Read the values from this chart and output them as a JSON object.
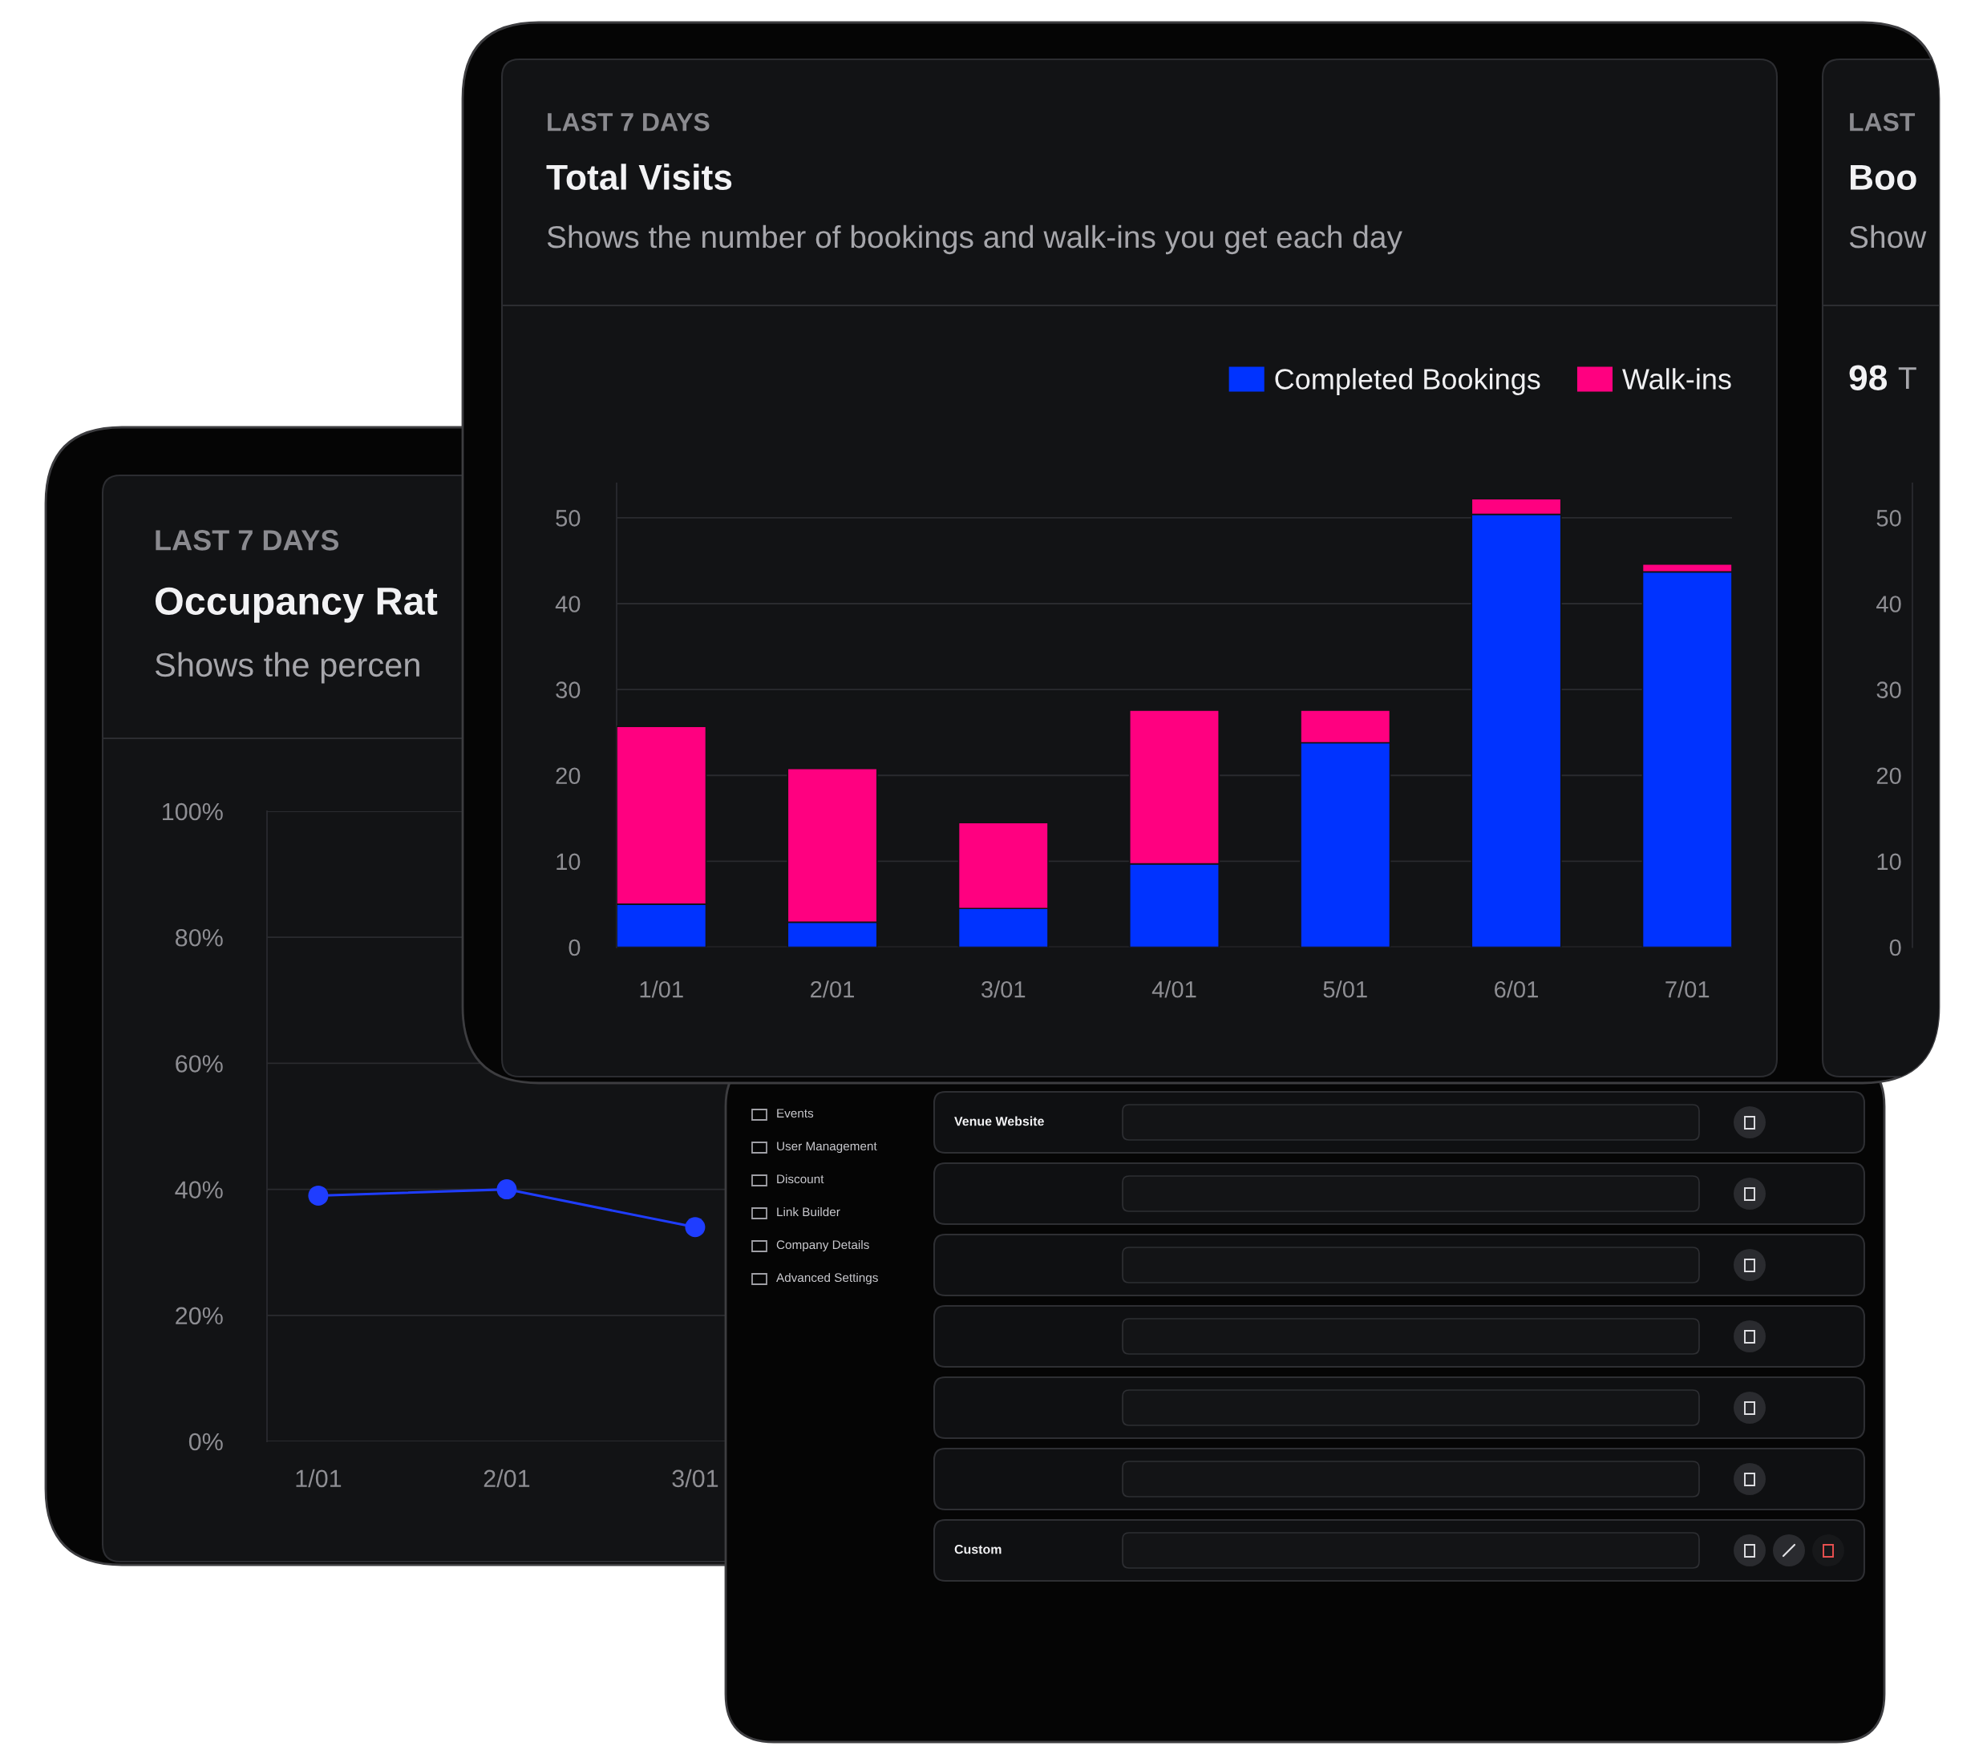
{
  "chart_data": [
    {
      "type": "bar",
      "stacked": true,
      "annotations": [
        "LAST 7 DAYS"
      ],
      "title": "Total Visits",
      "subtitle": "Shows the number of bookings and walk-ins you get each day",
      "categories": [
        "1/01",
        "2/01",
        "3/01",
        "4/01",
        "5/01",
        "6/01",
        "7/01"
      ],
      "series": [
        {
          "name": "Completed Bookings",
          "color": "#0033ff",
          "values": [
            5.0,
            2.9,
            4.5,
            9.7,
            23.8,
            50.4,
            43.7
          ]
        },
        {
          "name": "Walk-ins",
          "color": "#ff0080",
          "values": [
            20.7,
            17.9,
            10.0,
            17.9,
            3.8,
            1.8,
            0.9
          ]
        }
      ],
      "ylim": [
        0,
        54
      ],
      "yticks": [
        0,
        10,
        20,
        30,
        40,
        50
      ],
      "grid": "y",
      "legend": "top right"
    },
    {
      "type": "bar",
      "annotations": [
        "LAST",
        "98",
        "T"
      ],
      "title": "Boo",
      "subtitle": "Show",
      "categories": [
        null,
        null,
        null,
        null,
        null,
        null,
        null
      ],
      "series": [
        {
          "values": [
            null,
            null,
            null,
            null,
            null,
            null,
            null
          ]
        }
      ],
      "ylim": [
        0,
        54
      ],
      "yticks": [
        0,
        10,
        20,
        30,
        40,
        50
      ],
      "tick_labels": "y"
    },
    {
      "type": "line",
      "annotations": [
        "LAST 7 DAYS"
      ],
      "title": "Occupancy Rat",
      "subtitle": "Shows the percen",
      "categories": [
        "1/01",
        "2/01",
        "3/01"
      ],
      "series": [
        {
          "color": "#1f3dff",
          "values": [
            39,
            40,
            34
          ]
        }
      ],
      "ylim": [
        0,
        100
      ],
      "yticks": [
        {
          "value": 0,
          "label": "0%"
        },
        {
          "value": 20,
          "label": "20%"
        },
        {
          "value": 40,
          "label": "40%"
        },
        {
          "value": 60,
          "label": "60%"
        },
        {
          "value": 80,
          "label": "80%"
        },
        {
          "value": 100,
          "label": "100%"
        }
      ],
      "grid": "y",
      "marker": "circle",
      "line_style": "solid"
    },
    {
      "type": "other",
      "annotations": [
        "Events",
        "User Management",
        "Discount",
        "Link Builder",
        "Company Details",
        "Advanced Settings"
      ],
      "categories": [
        "Venue Website",
        null,
        null,
        null,
        null,
        null,
        "Custom"
      ]
    }
  ]
}
